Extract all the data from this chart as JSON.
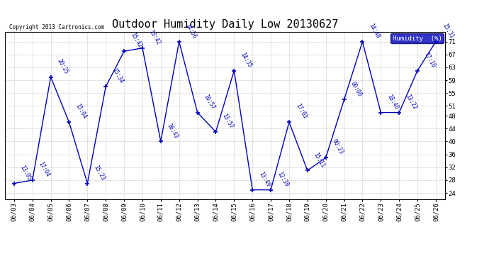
{
  "title": "Outdoor Humidity Daily Low 20130627",
  "copyright": "Copyright 2013 Cartronics.com",
  "legend_label": "Humidity  (%)",
  "x_labels": [
    "06/03",
    "06/04",
    "06/05",
    "06/06",
    "06/07",
    "06/08",
    "06/09",
    "06/10",
    "06/11",
    "06/12",
    "06/13",
    "06/14",
    "06/15",
    "06/16",
    "06/17",
    "06/18",
    "06/19",
    "06/20",
    "06/21",
    "06/22",
    "06/23",
    "06/24",
    "06/25",
    "06/26"
  ],
  "y_values": [
    27,
    28,
    60,
    46,
    27,
    57,
    68,
    69,
    40,
    71,
    49,
    43,
    62,
    25,
    25,
    46,
    31,
    35,
    53,
    71,
    49,
    49,
    62,
    71
  ],
  "point_labels": [
    "13:05",
    "17:04",
    "20:25",
    "15:04",
    "15:23",
    "15:34",
    "15:42",
    "13:42",
    "16:43",
    "14:56",
    "10:57",
    "13:57",
    "14:35",
    "13:49",
    "12:39",
    "17:03",
    "15:11",
    "00:23",
    "00:00",
    "14:48",
    "18:40",
    "13:22",
    "17:10",
    "15:31"
  ],
  "line_color": "#0000bb",
  "marker_color": "#0000bb",
  "bg_color": "#ffffff",
  "grid_color": "#bbbbbb",
  "label_color": "#0000bb",
  "ylim": [
    22,
    74
  ],
  "yticks": [
    24,
    28,
    32,
    36,
    40,
    44,
    48,
    51,
    55,
    59,
    63,
    67,
    71
  ],
  "title_fontsize": 11,
  "legend_bg": "#0000bb",
  "legend_text_color": "#ffffff"
}
